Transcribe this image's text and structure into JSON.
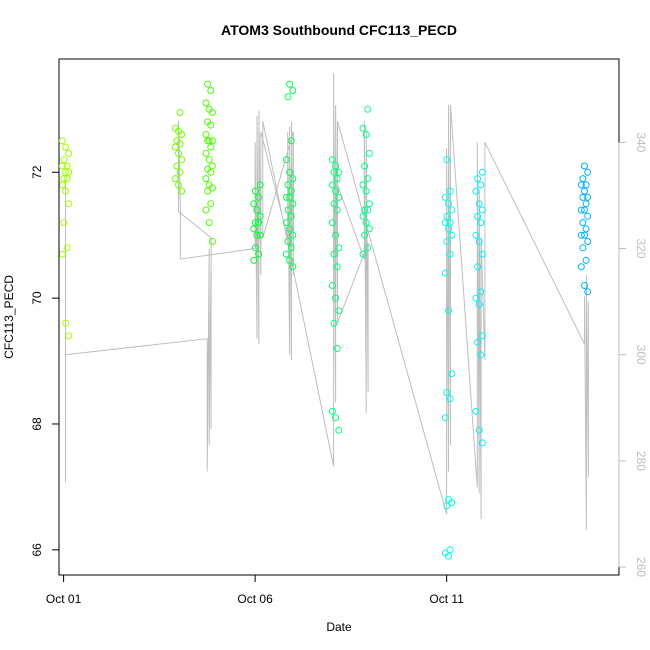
{
  "chart_data": {
    "type": "scatter",
    "title": "ATOM3 Southbound CFC113_PECD",
    "xlabel": "Date",
    "ylabel": "CFC113_PECD",
    "xlim": [
      -0.12,
      14.5
    ],
    "ylim": [
      65.6,
      73.8
    ],
    "y2lim": [
      258.5,
      355.7
    ],
    "x_ticks": [
      {
        "value": 0,
        "label": "Oct 01"
      },
      {
        "value": 5,
        "label": "Oct 06"
      },
      {
        "value": 10,
        "label": "Oct 11"
      }
    ],
    "y_ticks": [
      66,
      68,
      70,
      72
    ],
    "y2_ticks": [
      260,
      280,
      300,
      320,
      340
    ],
    "grid": false,
    "legend": "none",
    "colors": {
      "axis": "#000000",
      "secondary_line": "#bebebe",
      "secondary_axis": "#bebebe"
    },
    "series": [
      {
        "role": "points",
        "clusters": [
          {
            "x": 0.05,
            "color": "#9dff00",
            "y": [
              72.5,
              72.4,
              72.3,
              72.2,
              72.1,
              72.1,
              72.0,
              72.0,
              71.9,
              71.9,
              71.8,
              71.7,
              71.5,
              71.2,
              70.8,
              70.7,
              69.6,
              69.4
            ]
          },
          {
            "x": 3.0,
            "color": "#70ff00",
            "y": [
              72.95,
              72.7,
              72.65,
              72.6,
              72.5,
              72.45,
              72.4,
              72.3,
              72.2,
              72.1,
              72.0,
              71.9,
              71.8,
              71.7
            ]
          },
          {
            "x": 3.8,
            "color": "#4dff00",
            "y": [
              73.4,
              73.3,
              73.1,
              73.0,
              72.95,
              72.8,
              72.75,
              72.6,
              72.5,
              72.5,
              72.5,
              72.4,
              72.3,
              72.2,
              72.1,
              72.05,
              72.0,
              71.9,
              71.8,
              71.75,
              71.7,
              71.5,
              71.4,
              71.2,
              70.9
            ]
          },
          {
            "x": 5.05,
            "color": "#00ff35",
            "y": [
              71.8,
              71.7,
              71.6,
              71.5,
              71.4,
              71.3,
              71.2,
              71.2,
              71.1,
              71.0,
              71.0,
              70.8,
              70.7,
              70.6
            ]
          },
          {
            "x": 5.9,
            "color": "#00ff50",
            "y": [
              73.4,
              73.3,
              73.2,
              72.5,
              72.2,
              72.0,
              71.9,
              71.8,
              71.7,
              71.6,
              71.6,
              71.5,
              71.4,
              71.3,
              71.2,
              71.1,
              71.0,
              70.9,
              70.8,
              70.7,
              70.6,
              70.5
            ]
          },
          {
            "x": 7.1,
            "color": "#00ff7a",
            "y": [
              72.2,
              72.1,
              72.0,
              72.0,
              71.9,
              71.8,
              71.7,
              71.6,
              71.5,
              71.4,
              71.2,
              71.0,
              70.8,
              70.7,
              70.5,
              70.2,
              70.0,
              69.8,
              69.6,
              69.2,
              68.2,
              68.1,
              67.9
            ]
          },
          {
            "x": 7.9,
            "color": "#00ff8f",
            "y": [
              73.0,
              72.7,
              72.6,
              72.3,
              72.1,
              71.9,
              71.8,
              71.7,
              71.5,
              71.4,
              71.4,
              71.3,
              71.2,
              71.1,
              71.0,
              70.8,
              70.7
            ]
          },
          {
            "x": 10.05,
            "color": "#00ffeb",
            "y": [
              72.2,
              71.7,
              71.6,
              71.5,
              71.4,
              71.3,
              71.2,
              71.2,
              71.1,
              71.0,
              70.9,
              70.7,
              70.4,
              69.8,
              68.8,
              68.5,
              68.4,
              68.1,
              66.8,
              66.75,
              66.7,
              66.0,
              65.95,
              65.9
            ]
          },
          {
            "x": 10.85,
            "color": "#00f2ff",
            "y": [
              72.0,
              71.9,
              71.8,
              71.7,
              71.5,
              71.4,
              71.3,
              71.2,
              71.0,
              70.9,
              70.7,
              70.5,
              70.1,
              70.0,
              69.9,
              69.4,
              69.3,
              69.1,
              68.2,
              67.9,
              67.7
            ]
          },
          {
            "x": 13.6,
            "color": "#00b2ff",
            "y": [
              72.1,
              72.0,
              71.9,
              71.8,
              71.8,
              71.7,
              71.6,
              71.6,
              71.5,
              71.4,
              71.4,
              71.3,
              71.2,
              71.1,
              71.0,
              71.0,
              70.9,
              70.8,
              70.6,
              70.5,
              70.2,
              70.1
            ]
          }
        ]
      },
      {
        "role": "secondary-line",
        "axis": "right",
        "x": [
          0.05,
          0.05,
          0.05,
          0.05,
          0.05,
          3.75,
          3.75,
          3.8,
          3.8,
          3.85,
          3.85,
          3.85,
          3.0,
          3.0,
          3.05,
          3.05,
          5.0,
          5.0,
          5.05,
          5.05,
          5.1,
          5.1,
          5.15,
          5.15,
          5.85,
          5.85,
          5.9,
          5.9,
          5.95,
          5.95,
          6.0,
          6.0,
          5.2,
          5.2,
          7.05,
          7.05,
          7.1,
          7.1,
          7.15,
          7.15,
          7.85,
          7.85,
          7.9,
          7.9,
          7.95,
          7.95,
          7.15,
          7.15,
          10.0,
          10.0,
          10.05,
          10.05,
          10.1,
          10.1,
          10.8,
          10.8,
          10.85,
          10.85,
          10.9,
          10.9,
          11.0,
          11.0,
          13.6,
          13.6,
          13.65,
          13.65,
          13.7,
          13.7
        ],
        "y": [
          310,
          333,
          276,
          318,
          300,
          303,
          278,
          320,
          283,
          318,
          286,
          322,
          327,
          344,
          327,
          318,
          320,
          340,
          303,
          345,
          302,
          346,
          315,
          342,
          322,
          342,
          300,
          343,
          299,
          344,
          315,
          342,
          322,
          344,
          279,
          353,
          291,
          347,
          307,
          332,
          318,
          344,
          289,
          342,
          293,
          321,
          306,
          344,
          270,
          339,
          278,
          347,
          283,
          347,
          275,
          340,
          274,
          331,
          269,
          322,
          299,
          340,
          302,
          311,
          267,
          315,
          277,
          310
        ]
      }
    ]
  }
}
